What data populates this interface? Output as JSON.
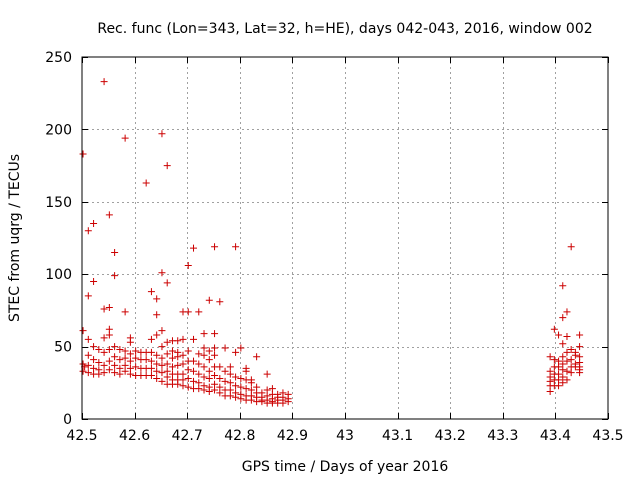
{
  "chart_data": {
    "type": "scatter",
    "title": "Rec. func (Lon=343, Lat=32, h=HE), days 042-043, 2016, window 002",
    "xlabel": "GPS time / Days of year 2016",
    "ylabel": "STEC from uqrg / TECUs",
    "xlim": [
      42.5,
      43.5
    ],
    "ylim": [
      0,
      250
    ],
    "xticks": [
      42.5,
      42.6,
      42.7,
      42.8,
      42.9,
      43,
      43.1,
      43.2,
      43.3,
      43.4,
      43.5
    ],
    "xtick_labels": [
      "42.5",
      "42.6",
      "42.7",
      "42.8",
      "42.9",
      "43",
      "43.1",
      "43.2",
      "43.3",
      "43.4",
      "43.5"
    ],
    "yticks": [
      0,
      50,
      100,
      150,
      200,
      250
    ],
    "ytick_labels": [
      "0",
      "50",
      "100",
      "150",
      "200",
      "250"
    ],
    "grid": true,
    "marker": "+",
    "color": "#cc0000",
    "points": [
      [
        42.502,
        183
      ],
      [
        42.502,
        61
      ],
      [
        42.502,
        38
      ],
      [
        42.502,
        33
      ],
      [
        42.505,
        36
      ],
      [
        42.512,
        130
      ],
      [
        42.512,
        85
      ],
      [
        42.512,
        55
      ],
      [
        42.512,
        44
      ],
      [
        42.512,
        37
      ],
      [
        42.512,
        32
      ],
      [
        42.522,
        135
      ],
      [
        42.522,
        95
      ],
      [
        42.522,
        50
      ],
      [
        42.522,
        41
      ],
      [
        42.522,
        35
      ],
      [
        42.522,
        31
      ],
      [
        42.532,
        48
      ],
      [
        42.532,
        39
      ],
      [
        42.532,
        34
      ],
      [
        42.532,
        31
      ],
      [
        42.542,
        233
      ],
      [
        42.542,
        76
      ],
      [
        42.542,
        56
      ],
      [
        42.542,
        46
      ],
      [
        42.542,
        37
      ],
      [
        42.542,
        32
      ],
      [
        42.552,
        141
      ],
      [
        42.552,
        77
      ],
      [
        42.552,
        62
      ],
      [
        42.552,
        58
      ],
      [
        42.552,
        48
      ],
      [
        42.552,
        40
      ],
      [
        42.552,
        34
      ],
      [
        42.562,
        115
      ],
      [
        42.562,
        99
      ],
      [
        42.562,
        50
      ],
      [
        42.562,
        43
      ],
      [
        42.562,
        37
      ],
      [
        42.562,
        32
      ],
      [
        42.572,
        48
      ],
      [
        42.572,
        41
      ],
      [
        42.572,
        35
      ],
      [
        42.572,
        31
      ],
      [
        42.582,
        194
      ],
      [
        42.582,
        74
      ],
      [
        42.582,
        47
      ],
      [
        42.582,
        42
      ],
      [
        42.582,
        37
      ],
      [
        42.582,
        33
      ],
      [
        42.592,
        56
      ],
      [
        42.592,
        53
      ],
      [
        42.592,
        45
      ],
      [
        42.592,
        40
      ],
      [
        42.592,
        35
      ],
      [
        42.592,
        31
      ],
      [
        42.602,
        47
      ],
      [
        42.602,
        42
      ],
      [
        42.602,
        36
      ],
      [
        42.602,
        30
      ],
      [
        42.612,
        46
      ],
      [
        42.612,
        41
      ],
      [
        42.612,
        35
      ],
      [
        42.612,
        30
      ],
      [
        42.622,
        163
      ],
      [
        42.622,
        46
      ],
      [
        42.622,
        41
      ],
      [
        42.622,
        35
      ],
      [
        42.622,
        30
      ],
      [
        42.632,
        88
      ],
      [
        42.632,
        55
      ],
      [
        42.632,
        46
      ],
      [
        42.632,
        40
      ],
      [
        42.632,
        35
      ],
      [
        42.632,
        30
      ],
      [
        42.642,
        83
      ],
      [
        42.642,
        72
      ],
      [
        42.642,
        58
      ],
      [
        42.642,
        44
      ],
      [
        42.642,
        38
      ],
      [
        42.642,
        33
      ],
      [
        42.642,
        28
      ],
      [
        42.652,
        197
      ],
      [
        42.652,
        101
      ],
      [
        42.652,
        61
      ],
      [
        42.652,
        50
      ],
      [
        42.652,
        42
      ],
      [
        42.652,
        37
      ],
      [
        42.652,
        32
      ],
      [
        42.652,
        26
      ],
      [
        42.662,
        175
      ],
      [
        42.662,
        94
      ],
      [
        42.662,
        53
      ],
      [
        42.662,
        45
      ],
      [
        42.662,
        38
      ],
      [
        42.662,
        33
      ],
      [
        42.662,
        29
      ],
      [
        42.662,
        24
      ],
      [
        42.672,
        54
      ],
      [
        42.672,
        47
      ],
      [
        42.672,
        42
      ],
      [
        42.672,
        36
      ],
      [
        42.672,
        31
      ],
      [
        42.672,
        27
      ],
      [
        42.672,
        24
      ],
      [
        42.682,
        54
      ],
      [
        42.682,
        46
      ],
      [
        42.682,
        43
      ],
      [
        42.682,
        37
      ],
      [
        42.682,
        31
      ],
      [
        42.682,
        27
      ],
      [
        42.682,
        24
      ],
      [
        42.692,
        74
      ],
      [
        42.692,
        55
      ],
      [
        42.692,
        44
      ],
      [
        42.692,
        38
      ],
      [
        42.692,
        31
      ],
      [
        42.692,
        27
      ],
      [
        42.692,
        23
      ],
      [
        42.702,
        106
      ],
      [
        42.702,
        74
      ],
      [
        42.702,
        47
      ],
      [
        42.702,
        40
      ],
      [
        42.702,
        34
      ],
      [
        42.702,
        28
      ],
      [
        42.702,
        22
      ],
      [
        42.712,
        118
      ],
      [
        42.712,
        55
      ],
      [
        42.712,
        40
      ],
      [
        42.712,
        33
      ],
      [
        42.712,
        26
      ],
      [
        42.712,
        21
      ],
      [
        42.722,
        74
      ],
      [
        42.722,
        45
      ],
      [
        42.722,
        38
      ],
      [
        42.722,
        31
      ],
      [
        42.722,
        25
      ],
      [
        42.722,
        21
      ],
      [
        42.732,
        59
      ],
      [
        42.732,
        49
      ],
      [
        42.732,
        44
      ],
      [
        42.732,
        36
      ],
      [
        42.732,
        29
      ],
      [
        42.732,
        23
      ],
      [
        42.732,
        20
      ],
      [
        42.742,
        82
      ],
      [
        42.742,
        47
      ],
      [
        42.742,
        41
      ],
      [
        42.742,
        33
      ],
      [
        42.742,
        28
      ],
      [
        42.742,
        22
      ],
      [
        42.742,
        19
      ],
      [
        42.752,
        119
      ],
      [
        42.752,
        59
      ],
      [
        42.752,
        49
      ],
      [
        42.752,
        44
      ],
      [
        42.752,
        36
      ],
      [
        42.752,
        30
      ],
      [
        42.752,
        24
      ],
      [
        42.752,
        20
      ],
      [
        42.762,
        81
      ],
      [
        42.762,
        36
      ],
      [
        42.762,
        28
      ],
      [
        42.762,
        22
      ],
      [
        42.762,
        18
      ],
      [
        42.772,
        49
      ],
      [
        42.772,
        33
      ],
      [
        42.772,
        26
      ],
      [
        42.772,
        20
      ],
      [
        42.772,
        16
      ],
      [
        42.782,
        36
      ],
      [
        42.782,
        31
      ],
      [
        42.782,
        25
      ],
      [
        42.782,
        20
      ],
      [
        42.782,
        16
      ],
      [
        42.792,
        119
      ],
      [
        42.792,
        46
      ],
      [
        42.792,
        29
      ],
      [
        42.792,
        23
      ],
      [
        42.792,
        18
      ],
      [
        42.792,
        15
      ],
      [
        42.802,
        49
      ],
      [
        42.802,
        28
      ],
      [
        42.802,
        22
      ],
      [
        42.802,
        17
      ],
      [
        42.802,
        14
      ],
      [
        42.812,
        35
      ],
      [
        42.812,
        33
      ],
      [
        42.812,
        27
      ],
      [
        42.812,
        21
      ],
      [
        42.812,
        16
      ],
      [
        42.812,
        13
      ],
      [
        42.822,
        27
      ],
      [
        42.822,
        25
      ],
      [
        42.822,
        20
      ],
      [
        42.822,
        16
      ],
      [
        42.822,
        13
      ],
      [
        42.832,
        43
      ],
      [
        42.832,
        22
      ],
      [
        42.832,
        18
      ],
      [
        42.832,
        15
      ],
      [
        42.832,
        12
      ],
      [
        42.842,
        18
      ],
      [
        42.842,
        15
      ],
      [
        42.842,
        13
      ],
      [
        42.842,
        12
      ],
      [
        42.852,
        31
      ],
      [
        42.852,
        20
      ],
      [
        42.852,
        16
      ],
      [
        42.852,
        13
      ],
      [
        42.852,
        11
      ],
      [
        42.862,
        21
      ],
      [
        42.862,
        17
      ],
      [
        42.862,
        14
      ],
      [
        42.862,
        12
      ],
      [
        42.862,
        11
      ],
      [
        42.872,
        17
      ],
      [
        42.872,
        15
      ],
      [
        42.872,
        13
      ],
      [
        42.872,
        11
      ],
      [
        42.882,
        18
      ],
      [
        42.882,
        15
      ],
      [
        42.882,
        13
      ],
      [
        42.882,
        11
      ],
      [
        42.892,
        17
      ],
      [
        42.892,
        14
      ],
      [
        42.892,
        12
      ],
      [
        43.39,
        43
      ],
      [
        43.39,
        33
      ],
      [
        43.39,
        29
      ],
      [
        43.39,
        26
      ],
      [
        43.39,
        23
      ],
      [
        43.39,
        19
      ],
      [
        43.398,
        62
      ],
      [
        43.398,
        41
      ],
      [
        43.398,
        36
      ],
      [
        43.398,
        31
      ],
      [
        43.398,
        27
      ],
      [
        43.398,
        23
      ],
      [
        43.406,
        58
      ],
      [
        43.406,
        40
      ],
      [
        43.406,
        36
      ],
      [
        43.406,
        31
      ],
      [
        43.406,
        27
      ],
      [
        43.406,
        23
      ],
      [
        43.414,
        92
      ],
      [
        43.414,
        70
      ],
      [
        43.414,
        52
      ],
      [
        43.414,
        43
      ],
      [
        43.414,
        38
      ],
      [
        43.414,
        34
      ],
      [
        43.414,
        29
      ],
      [
        43.414,
        25
      ],
      [
        43.422,
        74
      ],
      [
        43.422,
        57
      ],
      [
        43.422,
        46
      ],
      [
        43.422,
        40
      ],
      [
        43.422,
        33
      ],
      [
        43.422,
        27
      ],
      [
        43.43,
        119
      ],
      [
        43.43,
        48
      ],
      [
        43.43,
        41
      ],
      [
        43.43,
        36
      ],
      [
        43.43,
        32
      ],
      [
        43.438,
        46
      ],
      [
        43.438,
        44
      ],
      [
        43.438,
        38
      ],
      [
        43.438,
        36
      ],
      [
        43.446,
        58
      ],
      [
        43.446,
        50
      ],
      [
        43.446,
        43
      ],
      [
        43.446,
        39
      ],
      [
        43.446,
        36
      ],
      [
        43.446,
        34
      ],
      [
        43.446,
        32
      ]
    ]
  }
}
